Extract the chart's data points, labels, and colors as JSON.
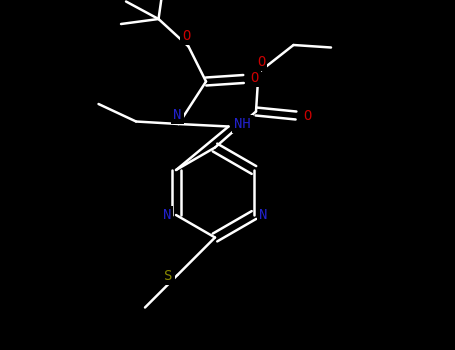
{
  "background_color": "#000000",
  "bond_color": "#ffffff",
  "N_color": "#2222cc",
  "O_color": "#cc0000",
  "S_color": "#888800",
  "figsize": [
    4.55,
    3.5
  ],
  "dpi": 100,
  "xlim": [
    0,
    9.1
  ],
  "ylim": [
    0,
    7.0
  ],
  "lw": 1.8,
  "fontsize": 10
}
